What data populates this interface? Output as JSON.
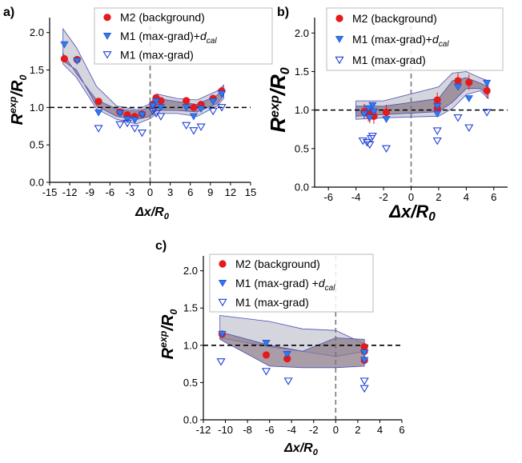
{
  "chart_data": [
    {
      "type": "scatter",
      "panel_label": "a)",
      "xlabel_main": "Δx/R",
      "xlabel_sub": "0",
      "ylabel_main": "R",
      "ylabel_sup": "exp",
      "ylabel_tail": "/R",
      "ylabel_sub": "0",
      "xlim": [
        -15,
        15
      ],
      "ylim": [
        0,
        2.2
      ],
      "xticks": [
        -15,
        -12,
        -9,
        -6,
        -3,
        0,
        3,
        6,
        9,
        12,
        15
      ],
      "yticks": [
        0.0,
        0.5,
        1.0,
        1.5,
        2.0
      ],
      "xtick_labels": [
        "-15",
        "-12",
        "-9",
        "-6",
        "-3",
        "0",
        "3",
        "6",
        "9",
        "12",
        "15"
      ],
      "ytick_labels": [
        "0.0",
        "0.5",
        "1.0",
        "1.5",
        "2.0"
      ],
      "hline": 1.0,
      "vline": 0,
      "legend": [
        {
          "label": "M2 (background)",
          "sub": ""
        },
        {
          "label": "M1 (max-grad)+d",
          "sub": "cal"
        },
        {
          "label": "M1 (max-grad)",
          "sub": ""
        }
      ],
      "bands": [
        {
          "upper": [
            [
              -13,
              2.05
            ],
            [
              -11,
              1.8
            ],
            [
              -8,
              1.28
            ],
            [
              -5,
              1.02
            ],
            [
              -2,
              0.97
            ],
            [
              0,
              1.05
            ],
            [
              1,
              1.18
            ],
            [
              4,
              1.12
            ],
            [
              7,
              1.1
            ],
            [
              10,
              1.22
            ],
            [
              11,
              1.3
            ]
          ],
          "lower": [
            [
              11,
              1.12
            ],
            [
              10,
              1.02
            ],
            [
              7,
              0.88
            ],
            [
              4,
              0.92
            ],
            [
              1,
              0.92
            ],
            [
              0,
              0.85
            ],
            [
              -2,
              0.78
            ],
            [
              -5,
              0.84
            ],
            [
              -8,
              0.98
            ],
            [
              -11,
              1.4
            ],
            [
              -13,
              1.58
            ]
          ]
        },
        {
          "upper": [
            [
              -13,
              1.72
            ],
            [
              -11,
              1.45
            ],
            [
              -8,
              1.1
            ],
            [
              -5,
              0.98
            ],
            [
              -2,
              0.95
            ],
            [
              0,
              1.0
            ],
            [
              1,
              1.12
            ],
            [
              4,
              1.08
            ],
            [
              7,
              1.04
            ],
            [
              10,
              1.16
            ],
            [
              11,
              1.26
            ]
          ],
          "lower": [
            [
              11,
              1.16
            ],
            [
              10,
              1.05
            ],
            [
              7,
              0.94
            ],
            [
              4,
              0.96
            ],
            [
              1,
              0.96
            ],
            [
              0,
              0.88
            ],
            [
              -2,
              0.84
            ],
            [
              -5,
              0.88
            ],
            [
              -8,
              1.02
            ],
            [
              -11,
              1.5
            ],
            [
              -13,
              1.62
            ]
          ]
        }
      ],
      "series": [
        {
          "name": "M2 (background)",
          "marker": "circle",
          "points": [
            [
              -12.8,
              1.65
            ],
            [
              -10.9,
              1.64
            ],
            [
              -7.7,
              1.08
            ],
            [
              -4.5,
              0.94
            ],
            [
              -3.4,
              0.9
            ],
            [
              -2.3,
              0.88
            ],
            [
              -1.2,
              0.91
            ],
            [
              0.4,
              1.04
            ],
            [
              0.9,
              1.13
            ],
            [
              1.6,
              1.09
            ],
            [
              5.4,
              1.09
            ],
            [
              6.5,
              1.0
            ],
            [
              7.6,
              1.04
            ],
            [
              9.4,
              1.12
            ],
            [
              10.7,
              1.22
            ]
          ]
        },
        {
          "name": "M1 (max-grad)+dcal",
          "marker": "tri-down-filled",
          "points": [
            [
              -12.8,
              1.84
            ],
            [
              -10.9,
              1.62
            ],
            [
              -7.7,
              0.93
            ],
            [
              -4.5,
              0.92
            ],
            [
              -3.4,
              0.84
            ],
            [
              -2.3,
              0.83
            ],
            [
              -1.2,
              0.9
            ],
            [
              0.4,
              1.02
            ],
            [
              0.9,
              1.08
            ],
            [
              1.6,
              1.0
            ],
            [
              5.4,
              1.0
            ],
            [
              6.5,
              0.88
            ],
            [
              7.6,
              0.98
            ],
            [
              9.4,
              1.08
            ],
            [
              10.7,
              1.18
            ]
          ]
        },
        {
          "name": "M1 (max-grad)",
          "marker": "tri-down-open",
          "points": [
            [
              -7.7,
              0.72
            ],
            [
              -4.5,
              0.77
            ],
            [
              -3.4,
              0.79
            ],
            [
              -2.3,
              0.72
            ],
            [
              -1.2,
              0.66
            ],
            [
              0.4,
              0.95
            ],
            [
              0.9,
              0.92
            ],
            [
              1.6,
              0.88
            ],
            [
              5.4,
              0.76
            ],
            [
              6.5,
              0.69
            ],
            [
              7.6,
              0.74
            ],
            [
              9.4,
              0.95
            ],
            [
              10.7,
              1.0
            ]
          ]
        }
      ]
    },
    {
      "type": "scatter",
      "panel_label": "b)",
      "xlabel_main": "Δx/R",
      "xlabel_sub": "0",
      "ylabel_main": "R",
      "ylabel_sup": "exp",
      "ylabel_tail": "/R",
      "ylabel_sub": "0",
      "xlim": [
        -7,
        7
      ],
      "ylim": [
        0,
        2.2
      ],
      "xticks": [
        -6,
        -4,
        -2,
        0,
        2,
        4,
        6
      ],
      "yticks": [
        0.0,
        0.5,
        1.0,
        1.5,
        2.0
      ],
      "xtick_labels": [
        "-6",
        "-4",
        "-2",
        "0",
        "2",
        "4",
        "6"
      ],
      "ytick_labels": [
        "0.0",
        "0.5",
        "1.0",
        "1.5",
        "2.0"
      ],
      "hline": 1.0,
      "vline": 0,
      "legend": [
        {
          "label": "M2 (background)",
          "sub": ""
        },
        {
          "label": "M1 (max-grad)+d",
          "sub": "cal"
        },
        {
          "label": "M1 (max-grad)",
          "sub": ""
        }
      ],
      "bands": [
        {
          "upper": [
            [
              -4,
              1.12
            ],
            [
              -2,
              1.12
            ],
            [
              2,
              1.3
            ],
            [
              3,
              1.48
            ],
            [
              4,
              1.5
            ],
            [
              5,
              1.42
            ],
            [
              5.6,
              1.38
            ]
          ],
          "lower": [
            [
              5.6,
              1.15
            ],
            [
              5,
              1.25
            ],
            [
              4,
              1.2
            ],
            [
              3,
              1.02
            ],
            [
              2,
              0.92
            ],
            [
              -2,
              0.9
            ],
            [
              -4,
              0.88
            ]
          ]
        },
        {
          "upper": [
            [
              -4,
              1.05
            ],
            [
              -2,
              1.05
            ],
            [
              2,
              1.15
            ],
            [
              3,
              1.38
            ],
            [
              4,
              1.42
            ],
            [
              5,
              1.35
            ],
            [
              5.6,
              1.3
            ]
          ],
          "lower": [
            [
              5.6,
              1.2
            ],
            [
              5,
              1.28
            ],
            [
              4,
              1.28
            ],
            [
              3,
              1.1
            ],
            [
              2,
              0.98
            ],
            [
              -2,
              0.94
            ],
            [
              -4,
              0.92
            ]
          ]
        }
      ],
      "series": [
        {
          "name": "M2 (background)",
          "marker": "circle",
          "points": [
            [
              -3.4,
              0.98
            ],
            [
              -3.1,
              0.95
            ],
            [
              -3.0,
              0.93
            ],
            [
              -2.8,
              0.97
            ],
            [
              -2.7,
              0.92
            ],
            [
              -1.8,
              0.97
            ],
            [
              1.9,
              1.13
            ],
            [
              1.9,
              1.02
            ],
            [
              3.4,
              1.38
            ],
            [
              4.2,
              1.36
            ],
            [
              5.5,
              1.25
            ]
          ]
        },
        {
          "name": "M1 (max-grad)+dcal",
          "marker": "tri-down-filled",
          "points": [
            [
              -3.4,
              0.95
            ],
            [
              -3.1,
              1.02
            ],
            [
              -3.0,
              0.9
            ],
            [
              -2.8,
              1.06
            ],
            [
              -2.7,
              0.98
            ],
            [
              -1.8,
              0.88
            ],
            [
              1.9,
              1.05
            ],
            [
              1.9,
              0.95
            ],
            [
              3.4,
              1.3
            ],
            [
              4.2,
              1.15
            ],
            [
              5.5,
              1.35
            ]
          ]
        },
        {
          "name": "M1 (max-grad)",
          "marker": "tri-down-open",
          "points": [
            [
              -3.5,
              0.6
            ],
            [
              -3.2,
              0.58
            ],
            [
              -3.0,
              0.55
            ],
            [
              -2.9,
              0.63
            ],
            [
              -2.8,
              0.66
            ],
            [
              -1.8,
              0.5
            ],
            [
              1.9,
              0.73
            ],
            [
              1.9,
              0.6
            ],
            [
              3.4,
              0.9
            ],
            [
              4.2,
              0.77
            ],
            [
              5.5,
              0.97
            ]
          ]
        }
      ]
    },
    {
      "type": "scatter",
      "panel_label": "c)",
      "xlabel_main": "Δx/R",
      "xlabel_sub": "0",
      "ylabel_main": "R",
      "ylabel_sup": "exp",
      "ylabel_tail": "/R",
      "ylabel_sub": "0",
      "xlim": [
        -12,
        6
      ],
      "ylim": [
        0,
        2.2
      ],
      "xticks": [
        -12,
        -10,
        -8,
        -6,
        -4,
        -2,
        0,
        2,
        4,
        6
      ],
      "yticks": [
        0.0,
        0.5,
        1.0,
        1.5,
        2.0
      ],
      "xtick_labels": [
        "-12",
        "-10",
        "-8",
        "-6",
        "-4",
        "-2",
        "0",
        "2",
        "4",
        "6"
      ],
      "ytick_labels": [
        "0.0",
        "0.5",
        "1.0",
        "1.5",
        "2.0"
      ],
      "hline": 1.0,
      "vline": 0,
      "legend": [
        {
          "label": "M2 (background)",
          "sub": ""
        },
        {
          "label": "M1 (max-grad) +d",
          "sub": "cal"
        },
        {
          "label": "M1 (max-grad)",
          "sub": ""
        }
      ],
      "bands": [
        {
          "upper": [
            [
              -10.5,
              1.4
            ],
            [
              -6,
              1.32
            ],
            [
              -3,
              1.22
            ],
            [
              0,
              1.2
            ],
            [
              2.6,
              1.02
            ]
          ],
          "lower": [
            [
              2.6,
              0.92
            ],
            [
              0,
              0.85
            ],
            [
              -3,
              0.92
            ],
            [
              -6,
              0.98
            ],
            [
              -10.5,
              1.1
            ]
          ]
        },
        {
          "upper": [
            [
              -10.5,
              1.18
            ],
            [
              -6,
              1.0
            ],
            [
              -3,
              0.92
            ],
            [
              0,
              1.1
            ],
            [
              2.6,
              1.08
            ]
          ],
          "lower": [
            [
              2.6,
              0.72
            ],
            [
              0,
              0.7
            ],
            [
              -3,
              0.7
            ],
            [
              -6,
              0.72
            ],
            [
              -10.5,
              1.08
            ]
          ]
        }
      ],
      "series": [
        {
          "name": "M2 (background)",
          "marker": "circle",
          "points": [
            [
              -10.3,
              1.15
            ],
            [
              -6.3,
              0.87
            ],
            [
              -4.4,
              0.82
            ],
            [
              2.6,
              0.98
            ],
            [
              2.6,
              0.92
            ],
            [
              2.6,
              0.8
            ]
          ]
        },
        {
          "name": "M1 (max-grad) +dcal",
          "marker": "tri-down-filled",
          "points": [
            [
              -10.3,
              1.15
            ],
            [
              -6.3,
              1.03
            ],
            [
              -4.4,
              0.88
            ],
            [
              2.6,
              0.9
            ],
            [
              2.6,
              0.8
            ]
          ]
        },
        {
          "name": "M1 (max-grad)",
          "marker": "tri-down-open",
          "points": [
            [
              -10.4,
              0.78
            ],
            [
              -6.3,
              0.65
            ],
            [
              -4.3,
              0.52
            ],
            [
              2.6,
              0.52
            ],
            [
              2.6,
              0.42
            ]
          ]
        }
      ]
    }
  ]
}
